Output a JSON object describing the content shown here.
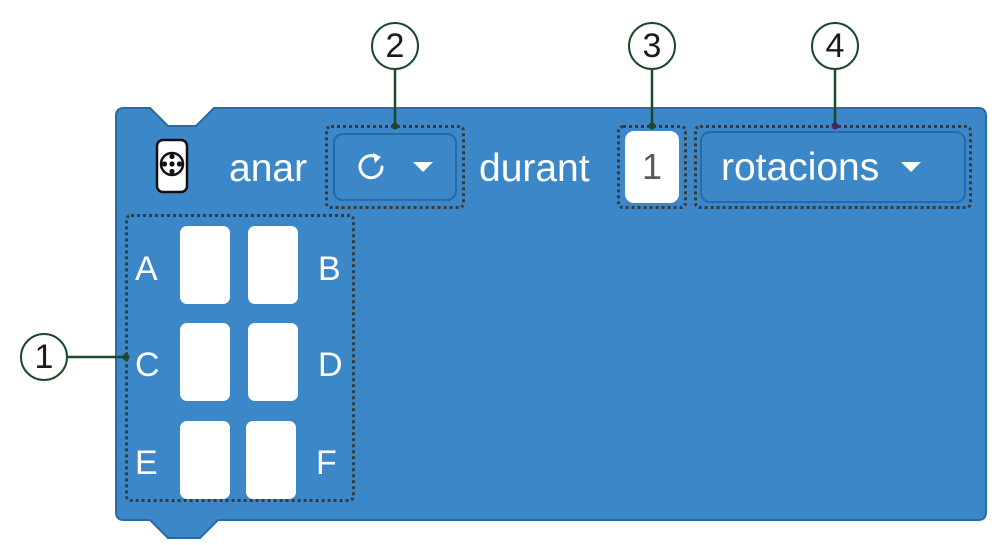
{
  "block": {
    "verb": "anar",
    "direction_icon": "rotate-clockwise-icon",
    "duration_word": "durant",
    "amount_value": "1",
    "unit_selected": "rotacions",
    "ports": [
      "A",
      "B",
      "C",
      "D",
      "E",
      "F"
    ]
  },
  "callouts": [
    "1",
    "2",
    "3",
    "4"
  ],
  "colors": {
    "block_fill": "#3c87c7",
    "block_border": "#2a69a8",
    "callout_ring": "#1b4a2a"
  }
}
